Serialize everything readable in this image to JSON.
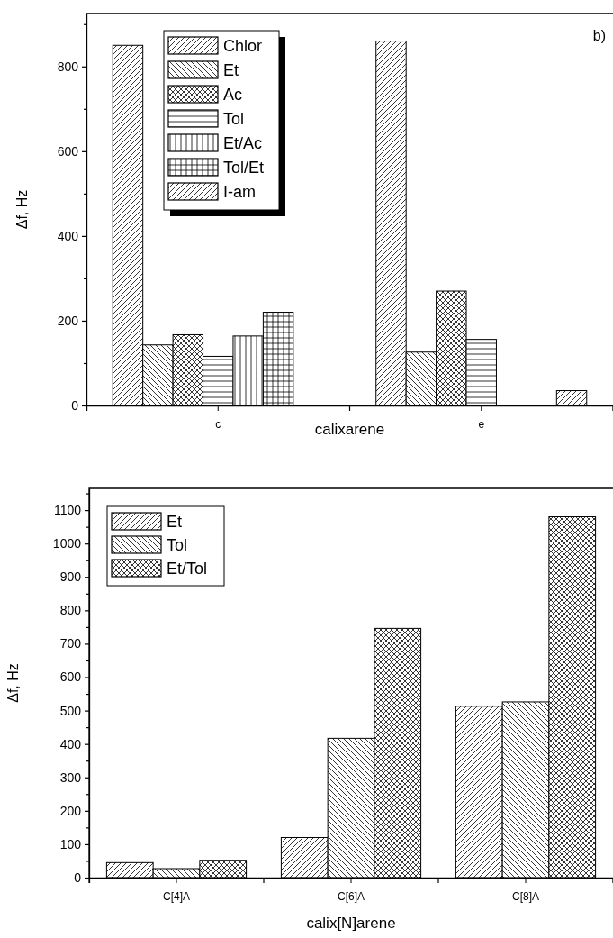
{
  "chart_data": [
    {
      "type": "bar",
      "xlabel": "calixarene",
      "ylabel": "Δf, Hz",
      "categories": [
        "c",
        "e"
      ],
      "series": [
        {
          "name": "Chlor",
          "color": "#000000",
          "values": [
            850,
            860
          ]
        },
        {
          "name": "Et",
          "color": "#000000",
          "values": [
            143,
            126
          ]
        },
        {
          "name": "Ac",
          "color": "#000000",
          "values": [
            167,
            270
          ]
        },
        {
          "name": "Tol",
          "color": "#000000",
          "values": [
            116,
            156
          ]
        },
        {
          "name": "Et/Ac",
          "color": "#000000",
          "values": [
            164,
            null
          ]
        },
        {
          "name": "Tol/Et",
          "color": "#000000",
          "values": [
            220,
            null
          ]
        },
        {
          "name": "I-am",
          "color": "#000000",
          "values": [
            null,
            35
          ]
        }
      ],
      "ylim": [
        0,
        925
      ],
      "yticks": [
        0,
        {
          "value": 100,
          "label": null
        },
        200,
        {
          "value": 300,
          "label": null
        },
        400,
        {
          "value": 500,
          "label": null
        },
        600,
        {
          "value": 700,
          "label": null
        },
        800,
        {
          "value": 900,
          "label": null
        }
      ],
      "legend": "top left",
      "grid": false,
      "annotations": [
        "b)"
      ]
    },
    {
      "type": "bar",
      "xlabel": "calix[N]arene",
      "ylabel": "Δf, Hz",
      "categories": [
        "C[4]A",
        "C[6]A",
        "C[8]A"
      ],
      "series": [
        {
          "name": "Et",
          "color": "#000000",
          "values": [
            45,
            120,
            513
          ]
        },
        {
          "name": "Tol",
          "color": "#000000",
          "values": [
            27,
            417,
            526
          ]
        },
        {
          "name": "Et/Tol",
          "color": "#000000",
          "values": [
            52,
            746,
            1080
          ]
        }
      ],
      "ylim": [
        0,
        1165
      ],
      "yticks": [
        0,
        {
          "value": 50,
          "label": null
        },
        100,
        {
          "value": 150,
          "label": null
        },
        200,
        {
          "value": 250,
          "label": null
        },
        300,
        {
          "value": 350,
          "label": null
        },
        400,
        {
          "value": 450,
          "label": null
        },
        500,
        {
          "value": 550,
          "label": null
        },
        600,
        {
          "value": 650,
          "label": null
        },
        700,
        {
          "value": 750,
          "label": null
        },
        800,
        {
          "value": 850,
          "label": null
        },
        900,
        {
          "value": 950,
          "label": null
        },
        1000,
        {
          "value": 1050,
          "label": null
        },
        1100,
        {
          "value": 1150,
          "label": null
        }
      ],
      "legend": "top left",
      "grid": false
    }
  ]
}
